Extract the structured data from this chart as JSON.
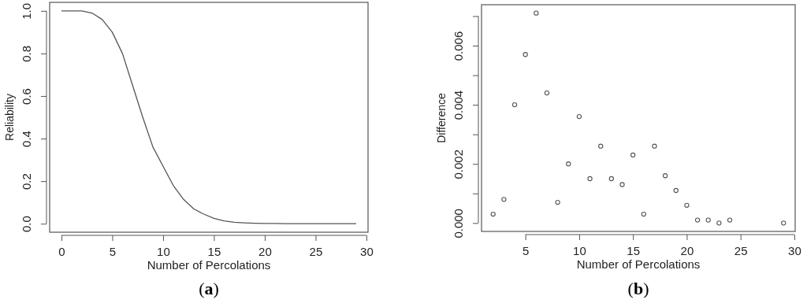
{
  "chart_data": [
    {
      "type": "line",
      "xlabel": "Number of Percolations",
      "ylabel": "Reliability",
      "x": [
        0,
        1,
        2,
        3,
        4,
        5,
        6,
        7,
        8,
        9,
        10,
        11,
        12,
        13,
        14,
        15,
        16,
        17,
        18,
        19,
        20,
        21,
        22,
        23,
        24,
        25,
        26,
        27,
        28,
        29
      ],
      "series": [
        {
          "color": "#555555",
          "values": [
            1,
            1,
            1,
            0.99,
            0.96,
            0.9,
            0.8,
            0.65,
            0.5,
            0.36,
            0.27,
            0.18,
            0.115,
            0.07,
            0.045,
            0.025,
            0.013,
            0.007,
            0.004,
            0.002,
            0.001,
            0.001,
            0,
            0,
            0,
            0,
            0,
            0,
            0,
            0
          ]
        }
      ],
      "xlim": [
        -1.16,
        30.16
      ],
      "ylim": [
        -0.04,
        1.04
      ],
      "xticks": [
        0,
        5,
        10,
        15,
        20,
        25,
        30
      ],
      "yticks": [
        {
          "value": 0,
          "label": "0.0"
        },
        {
          "value": 0.2,
          "label": "0.2"
        },
        {
          "value": 0.4,
          "label": "0.4"
        },
        {
          "value": 0.6,
          "label": "0.6"
        },
        {
          "value": 0.8,
          "label": "0.8"
        },
        {
          "value": 1,
          "label": "1.0"
        }
      ],
      "marker": "none",
      "line_style": "solid",
      "grid": false,
      "annotations": [
        "(a)"
      ]
    },
    {
      "type": "scatter",
      "xlabel": "Number of Percolations",
      "ylabel": "Difference",
      "x": [
        2,
        3,
        4,
        5,
        6,
        7,
        8,
        9,
        10,
        11,
        12,
        13,
        14,
        15,
        16,
        17,
        18,
        19,
        20,
        21,
        22,
        23,
        24,
        29
      ],
      "series": [
        {
          "color": "#555555",
          "values": [
            0.0003,
            0.0008,
            0.004,
            0.0057,
            0.0071,
            0.0044,
            0.0007,
            0.002,
            0.0036,
            0.0015,
            0.0026,
            0.0015,
            0.0013,
            0.0023,
            0.0003,
            0.0026,
            0.0016,
            0.0011,
            0.0006,
            0.0001,
            0.0001,
            0,
            0.0001,
            0
          ]
        }
      ],
      "xlim": [
        0.92,
        30.08
      ],
      "ylim": [
        -0.000284,
        0.007384
      ],
      "xticks": [
        5,
        10,
        15,
        20,
        25,
        30
      ],
      "yticks": [
        {
          "value": 0,
          "label": "0.000"
        },
        {
          "value": 0.001,
          "label": null
        },
        {
          "value": 0.002,
          "label": "0.002"
        },
        {
          "value": 0.003,
          "label": null
        },
        {
          "value": 0.004,
          "label": "0.004"
        },
        {
          "value": 0.005,
          "label": null
        },
        {
          "value": 0.006,
          "label": "0.006"
        },
        {
          "value": 0.007,
          "label": null
        }
      ],
      "marker": "circle",
      "grid": false,
      "annotations": [
        "(b)"
      ]
    }
  ]
}
